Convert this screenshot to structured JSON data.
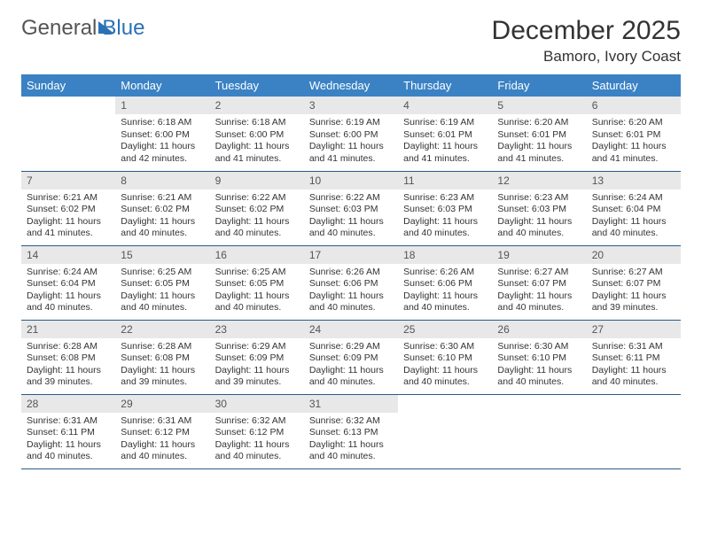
{
  "logo": {
    "part1": "General",
    "part2": "Blue"
  },
  "title": "December 2025",
  "location": "Bamoro, Ivory Coast",
  "colors": {
    "header_bg": "#3b82c4",
    "daynum_bg": "#e8e8e8",
    "row_border": "#2a5a8a",
    "logo_blue": "#2a72b5"
  },
  "weekdays": [
    "Sunday",
    "Monday",
    "Tuesday",
    "Wednesday",
    "Thursday",
    "Friday",
    "Saturday"
  ],
  "weeks": [
    [
      null,
      {
        "n": "1",
        "sr": "Sunrise: 6:18 AM",
        "ss": "Sunset: 6:00 PM",
        "dl": "Daylight: 11 hours and 42 minutes."
      },
      {
        "n": "2",
        "sr": "Sunrise: 6:18 AM",
        "ss": "Sunset: 6:00 PM",
        "dl": "Daylight: 11 hours and 41 minutes."
      },
      {
        "n": "3",
        "sr": "Sunrise: 6:19 AM",
        "ss": "Sunset: 6:00 PM",
        "dl": "Daylight: 11 hours and 41 minutes."
      },
      {
        "n": "4",
        "sr": "Sunrise: 6:19 AM",
        "ss": "Sunset: 6:01 PM",
        "dl": "Daylight: 11 hours and 41 minutes."
      },
      {
        "n": "5",
        "sr": "Sunrise: 6:20 AM",
        "ss": "Sunset: 6:01 PM",
        "dl": "Daylight: 11 hours and 41 minutes."
      },
      {
        "n": "6",
        "sr": "Sunrise: 6:20 AM",
        "ss": "Sunset: 6:01 PM",
        "dl": "Daylight: 11 hours and 41 minutes."
      }
    ],
    [
      {
        "n": "7",
        "sr": "Sunrise: 6:21 AM",
        "ss": "Sunset: 6:02 PM",
        "dl": "Daylight: 11 hours and 41 minutes."
      },
      {
        "n": "8",
        "sr": "Sunrise: 6:21 AM",
        "ss": "Sunset: 6:02 PM",
        "dl": "Daylight: 11 hours and 40 minutes."
      },
      {
        "n": "9",
        "sr": "Sunrise: 6:22 AM",
        "ss": "Sunset: 6:02 PM",
        "dl": "Daylight: 11 hours and 40 minutes."
      },
      {
        "n": "10",
        "sr": "Sunrise: 6:22 AM",
        "ss": "Sunset: 6:03 PM",
        "dl": "Daylight: 11 hours and 40 minutes."
      },
      {
        "n": "11",
        "sr": "Sunrise: 6:23 AM",
        "ss": "Sunset: 6:03 PM",
        "dl": "Daylight: 11 hours and 40 minutes."
      },
      {
        "n": "12",
        "sr": "Sunrise: 6:23 AM",
        "ss": "Sunset: 6:03 PM",
        "dl": "Daylight: 11 hours and 40 minutes."
      },
      {
        "n": "13",
        "sr": "Sunrise: 6:24 AM",
        "ss": "Sunset: 6:04 PM",
        "dl": "Daylight: 11 hours and 40 minutes."
      }
    ],
    [
      {
        "n": "14",
        "sr": "Sunrise: 6:24 AM",
        "ss": "Sunset: 6:04 PM",
        "dl": "Daylight: 11 hours and 40 minutes."
      },
      {
        "n": "15",
        "sr": "Sunrise: 6:25 AM",
        "ss": "Sunset: 6:05 PM",
        "dl": "Daylight: 11 hours and 40 minutes."
      },
      {
        "n": "16",
        "sr": "Sunrise: 6:25 AM",
        "ss": "Sunset: 6:05 PM",
        "dl": "Daylight: 11 hours and 40 minutes."
      },
      {
        "n": "17",
        "sr": "Sunrise: 6:26 AM",
        "ss": "Sunset: 6:06 PM",
        "dl": "Daylight: 11 hours and 40 minutes."
      },
      {
        "n": "18",
        "sr": "Sunrise: 6:26 AM",
        "ss": "Sunset: 6:06 PM",
        "dl": "Daylight: 11 hours and 40 minutes."
      },
      {
        "n": "19",
        "sr": "Sunrise: 6:27 AM",
        "ss": "Sunset: 6:07 PM",
        "dl": "Daylight: 11 hours and 40 minutes."
      },
      {
        "n": "20",
        "sr": "Sunrise: 6:27 AM",
        "ss": "Sunset: 6:07 PM",
        "dl": "Daylight: 11 hours and 39 minutes."
      }
    ],
    [
      {
        "n": "21",
        "sr": "Sunrise: 6:28 AM",
        "ss": "Sunset: 6:08 PM",
        "dl": "Daylight: 11 hours and 39 minutes."
      },
      {
        "n": "22",
        "sr": "Sunrise: 6:28 AM",
        "ss": "Sunset: 6:08 PM",
        "dl": "Daylight: 11 hours and 39 minutes."
      },
      {
        "n": "23",
        "sr": "Sunrise: 6:29 AM",
        "ss": "Sunset: 6:09 PM",
        "dl": "Daylight: 11 hours and 39 minutes."
      },
      {
        "n": "24",
        "sr": "Sunrise: 6:29 AM",
        "ss": "Sunset: 6:09 PM",
        "dl": "Daylight: 11 hours and 40 minutes."
      },
      {
        "n": "25",
        "sr": "Sunrise: 6:30 AM",
        "ss": "Sunset: 6:10 PM",
        "dl": "Daylight: 11 hours and 40 minutes."
      },
      {
        "n": "26",
        "sr": "Sunrise: 6:30 AM",
        "ss": "Sunset: 6:10 PM",
        "dl": "Daylight: 11 hours and 40 minutes."
      },
      {
        "n": "27",
        "sr": "Sunrise: 6:31 AM",
        "ss": "Sunset: 6:11 PM",
        "dl": "Daylight: 11 hours and 40 minutes."
      }
    ],
    [
      {
        "n": "28",
        "sr": "Sunrise: 6:31 AM",
        "ss": "Sunset: 6:11 PM",
        "dl": "Daylight: 11 hours and 40 minutes."
      },
      {
        "n": "29",
        "sr": "Sunrise: 6:31 AM",
        "ss": "Sunset: 6:12 PM",
        "dl": "Daylight: 11 hours and 40 minutes."
      },
      {
        "n": "30",
        "sr": "Sunrise: 6:32 AM",
        "ss": "Sunset: 6:12 PM",
        "dl": "Daylight: 11 hours and 40 minutes."
      },
      {
        "n": "31",
        "sr": "Sunrise: 6:32 AM",
        "ss": "Sunset: 6:13 PM",
        "dl": "Daylight: 11 hours and 40 minutes."
      },
      null,
      null,
      null
    ]
  ]
}
